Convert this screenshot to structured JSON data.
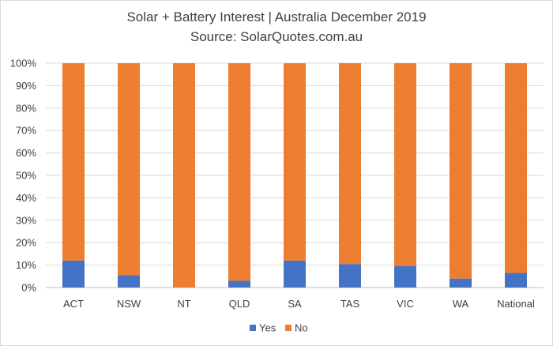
{
  "chart_data": {
    "type": "bar",
    "stacked": true,
    "title": "Solar + Battery Interest  | Australia December  2019",
    "subtitle": "Source: SolarQuotes.com.au",
    "categories": [
      "ACT",
      "NSW",
      "NT",
      "QLD",
      "SA",
      "TAS",
      "VIC",
      "WA",
      "National"
    ],
    "series": [
      {
        "name": "Yes",
        "color": "#4472c4",
        "values": [
          12,
          5.5,
          0,
          3,
          12,
          10.5,
          9.5,
          4,
          6.5
        ]
      },
      {
        "name": "No",
        "color": "#ed7d31",
        "values": [
          88,
          94.5,
          100,
          97,
          88,
          89.5,
          90.5,
          96,
          93.5
        ]
      }
    ],
    "yticks": [
      "0%",
      "10%",
      "20%",
      "30%",
      "40%",
      "50%",
      "60%",
      "70%",
      "80%",
      "90%",
      "100%"
    ],
    "ylim": [
      0,
      100
    ],
    "grid": true,
    "legend": "bottom"
  }
}
